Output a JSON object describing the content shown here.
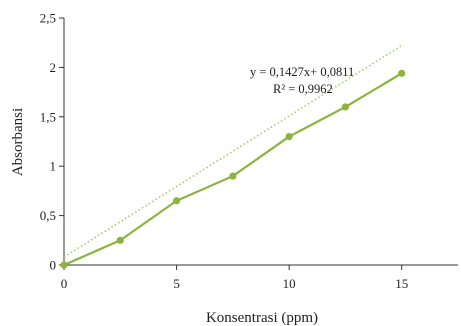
{
  "chart_data": {
    "type": "scatter",
    "xlabel": "Konsentrasi (ppm)",
    "ylabel": "Absorbansi",
    "xlim": [
      0,
      17.5
    ],
    "ylim": [
      0,
      2.5
    ],
    "x_ticks": [
      "0",
      "5",
      "10",
      "15"
    ],
    "y_ticks": [
      "0",
      "0,5",
      "1",
      "1,5",
      "2",
      "2,5"
    ],
    "x_tick_values": [
      0,
      5,
      10,
      15
    ],
    "y_tick_values": [
      0,
      0.5,
      1,
      1.5,
      2,
      2.5
    ],
    "series": [
      {
        "x": [
          0,
          2.5,
          5,
          7.5,
          10,
          12.5,
          15
        ],
        "y": [
          0,
          0.25,
          0.65,
          0.9,
          1.3,
          1.6,
          1.94
        ]
      }
    ],
    "trendline": {
      "slope": 0.1427,
      "intercept": 0.0811,
      "style": "dotted"
    },
    "annotations": [
      "y = 0,1427x+ 0,0811",
      "R² = 0,9962"
    ],
    "grid": false,
    "colors": {
      "series": "#8cb43c",
      "trend": "#a8c870",
      "axis": "#333333"
    }
  }
}
